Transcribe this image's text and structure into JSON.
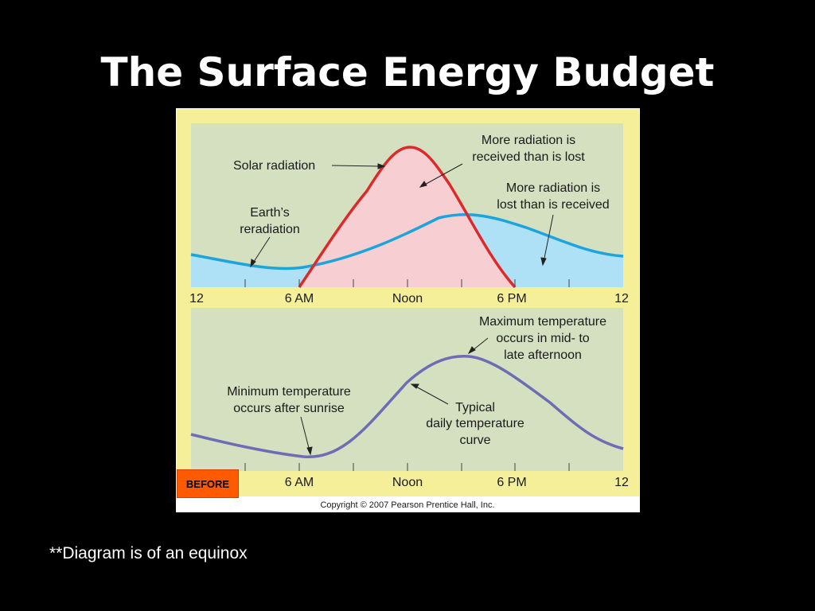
{
  "slide": {
    "title": "The Surface Energy Budget",
    "footnote": "**Diagram is of an equinox",
    "badge": "BEFORE"
  },
  "figure": {
    "copyright": "Copyright © 2007 Pearson Prentice Hall, Inc.",
    "top_panel": {
      "label_solar": "Solar radiation",
      "label_reradiation_1": "Earth’s",
      "label_reradiation_2": "reradiation",
      "label_received_1": "More radiation is",
      "label_received_2": "received than is lost",
      "label_lost_1": "More radiation is",
      "label_lost_2": "lost than is received",
      "axis_ticks": [
        "12",
        "6 AM",
        "Noon",
        "6 PM",
        "12"
      ]
    },
    "bottom_panel": {
      "label_max_1": "Maximum temperature",
      "label_max_2": "occurs in mid- to",
      "label_max_3": "late afternoon",
      "label_min_1": "Minimum temperature",
      "label_min_2": "occurs after sunrise",
      "label_typical_1": "Typical",
      "label_typical_2": "daily temperature",
      "label_typical_3": "curve",
      "axis_ticks": [
        "12",
        "6 AM",
        "Noon",
        "6 PM",
        "12"
      ]
    },
    "colors": {
      "frame": "#f5ef9a",
      "panel_bg": "#d4e0c0",
      "solar_curve": "#dc2a2a",
      "solar_fill": "#f7cfd2",
      "reradiation_curve": "#1ea4dc",
      "reradiation_fill": "#aee0f6",
      "temperature_curve": "#6e6cb4"
    }
  }
}
